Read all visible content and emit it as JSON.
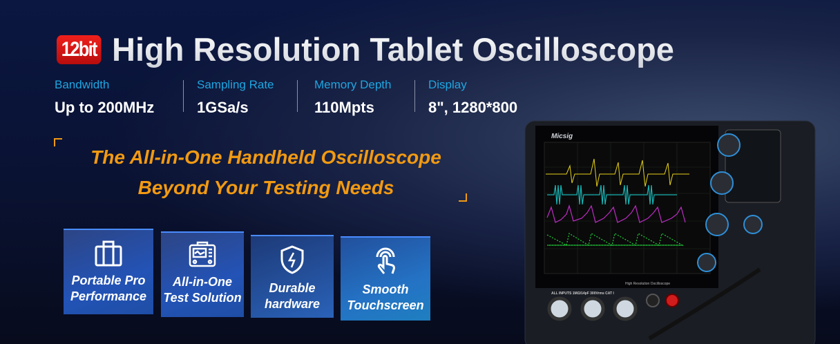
{
  "header": {
    "badge": "12bit",
    "title": "High Resolution Tablet Oscilloscope"
  },
  "specs": [
    {
      "label": "Bandwidth",
      "value": "Up to 200MHz"
    },
    {
      "label": "Sampling Rate",
      "value": "1GSa/s"
    },
    {
      "label": "Memory Depth",
      "value": "110Mpts"
    },
    {
      "label": "Display",
      "value": "8\", 1280*800"
    }
  ],
  "tagline": {
    "line1": "The All-in-One Handheld Oscilloscope",
    "line2": "Beyond Your Testing Needs"
  },
  "features": [
    {
      "icon": "briefcase-icon",
      "line1": "Portable Pro",
      "line2": "Performance"
    },
    {
      "icon": "instrument-icon",
      "line1": "All-in-One",
      "line2": "Test Solution"
    },
    {
      "icon": "shield-bolt-icon",
      "line1": "Durable",
      "line2": "hardware"
    },
    {
      "icon": "touch-icon",
      "line1": "Smooth",
      "line2": "Touchscreen"
    }
  ],
  "device": {
    "brand": "Micsig",
    "model_label": "High Resolution Oscilloscope",
    "inputs_label": "ALL INPUTS 1MΩ/14pF 300Vrms CAT I"
  },
  "colors": {
    "accent_orange": "#f29a12",
    "spec_label": "#1fa6e0",
    "badge_red": "#e01a17",
    "ch1": "#e8d21a",
    "ch2": "#19b5b5",
    "ch3": "#c02cc8",
    "ch4": "#22d23a"
  }
}
